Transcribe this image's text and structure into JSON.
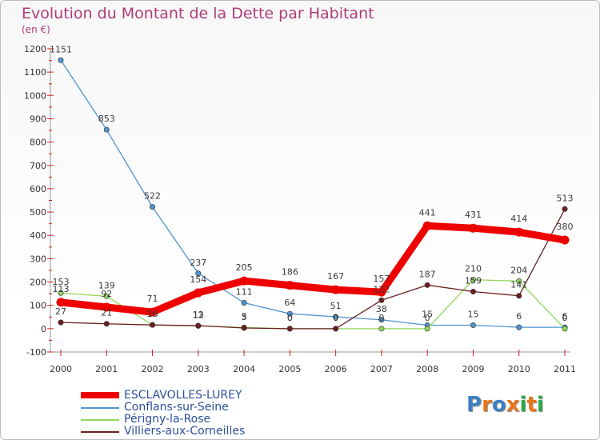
{
  "header": {
    "title": "Evolution du Montant de la Dette par Habitant",
    "subtitle": "(en €)"
  },
  "logo": {
    "text": "Proxiti",
    "colors": [
      "#3d7fc1",
      "#e8761a",
      "#3d7fc1",
      "#e8761a",
      "#2aa84a",
      "#e8761a",
      "#2aa84a"
    ]
  },
  "chart_data": {
    "type": "line",
    "title": "Evolution du Montant de la Dette par Habitant",
    "subtitle": "(en €)",
    "xlabel": "",
    "ylabel": "",
    "ylim": [
      -100,
      1200
    ],
    "yticks": [
      -100,
      0,
      100,
      200,
      300,
      400,
      500,
      600,
      700,
      800,
      900,
      1000,
      1100,
      1200
    ],
    "x": [
      "2000",
      "2001",
      "2002",
      "2003",
      "2004",
      "2005",
      "2006",
      "2007",
      "2008",
      "2009",
      "2010",
      "2011"
    ],
    "grid": false,
    "legend_position": "bottom-left",
    "series": [
      {
        "name": "ESCLAVOLLES-LUREY",
        "color": "#ee0000",
        "values": [
          113,
          92,
          71,
          154,
          205,
          186,
          167,
          157,
          441,
          431,
          414,
          380
        ],
        "labels": [
          "113",
          "92",
          "71",
          "154",
          "205",
          "186",
          "167",
          "157",
          "441",
          "431",
          "414",
          "380"
        ]
      },
      {
        "name": "Conflans-sur-Seine",
        "color": "#4f93cf",
        "values": [
          1151,
          853,
          522,
          237,
          111,
          64,
          51,
          38,
          15,
          15,
          6,
          6
        ],
        "labels": [
          "1151",
          "853",
          "522",
          "237",
          "111",
          "64",
          "51",
          "38",
          "15",
          "15",
          "6",
          "6"
        ]
      },
      {
        "name": "Périgny-la-Rose",
        "color": "#90d65a",
        "values": [
          153,
          139,
          16,
          12,
          5,
          0,
          0,
          0,
          0,
          210,
          204,
          0
        ],
        "labels": [
          "153",
          "139",
          "16",
          "12",
          "5",
          "0",
          "0",
          "0",
          "0",
          "210",
          "204",
          "0"
        ]
      },
      {
        "name": "Villiers-aux-Corneilles",
        "color": "#6b2020",
        "values": [
          27,
          21,
          16,
          13,
          3,
          0,
          0,
          122,
          187,
          159,
          141,
          513
        ],
        "labels": [
          "27",
          "21",
          "16",
          "13",
          "3",
          "0",
          "0",
          "122",
          "187",
          "159",
          "141",
          "513"
        ]
      }
    ]
  }
}
